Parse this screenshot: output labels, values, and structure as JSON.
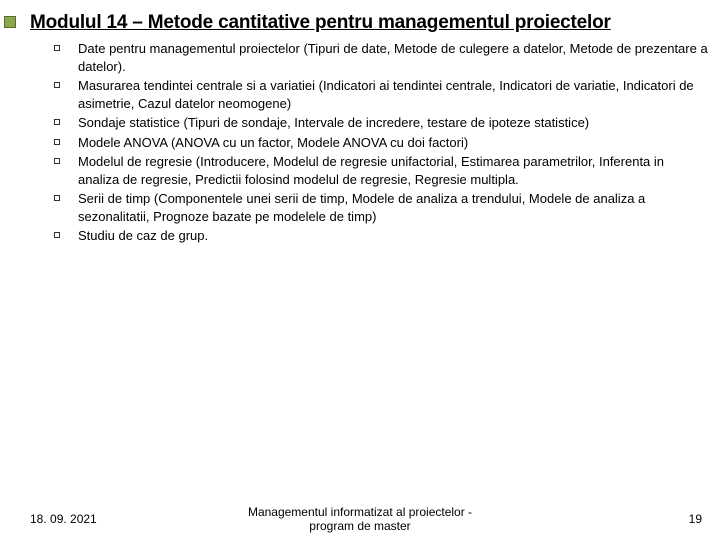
{
  "title": "Modulul 14 – Metode cantitative pentru managementul proiectelor",
  "bullets": {
    "items": [
      "Date pentru managementul proiectelor (Tipuri de date, Metode de culegere a datelor, Metode de prezentare a datelor).",
      "Masurarea tendintei centrale si a variatiei (Indicatori ai tendintei centrale, Indicatori de variatie, Indicatori de asimetrie, Cazul datelor neomogene)",
      "Sondaje statistice (Tipuri de sondaje, Intervale de incredere, testare de ipoteze statistice)",
      "Modele ANOVA (ANOVA cu un factor, Modele ANOVA cu doi factori)",
      "Modelul de regresie (Introducere, Modelul de regresie unifactorial, Estimarea parametrilor, Inferenta in analiza de regresie, Predictii folosind modelul de regresie, Regresie multipla.",
      "Serii de timp (Componentele unei serii de timp, Modele de analiza a trendului, Modele de analiza a sezonalitatii, Prognoze bazate pe modelele de timp)",
      "Studiu de caz de grup."
    ]
  },
  "footer": {
    "date": "18. 09. 2021",
    "center_line1": "Managementul informatizat al proiectelor -",
    "center_line2": "program de master",
    "page": "19"
  },
  "colors": {
    "accent": "#8ca84c",
    "page_number": "#000000"
  }
}
